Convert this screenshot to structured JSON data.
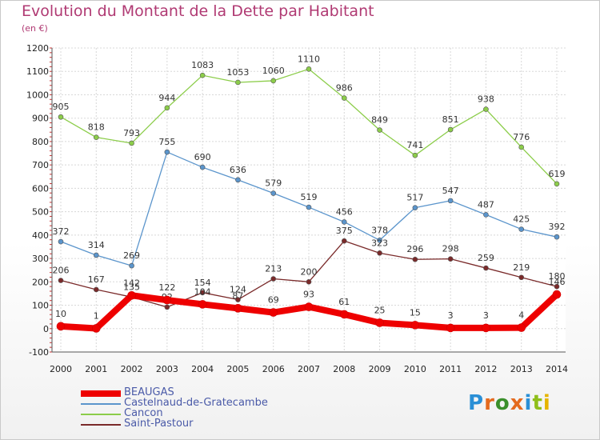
{
  "title": "Evolution du Montant de la Dette par Habitant",
  "subtitle": "(en €)",
  "logo": {
    "text": "Proxiti",
    "colors": [
      "#2a8fd6",
      "#e46a1e",
      "#3a8f2b",
      "#e46a1e",
      "#2a8fd6",
      "#8fbf1a",
      "#e6b400"
    ]
  },
  "chart_data": {
    "type": "line",
    "categories": [
      "2000",
      "2001",
      "2002",
      "2003",
      "2004",
      "2005",
      "2006",
      "2007",
      "2008",
      "2009",
      "2010",
      "2011",
      "2012",
      "2013",
      "2014"
    ],
    "ylim": [
      -100,
      1200
    ],
    "yticks": [
      "-100",
      "0",
      "100",
      "200",
      "300",
      "400",
      "500",
      "600",
      "700",
      "800",
      "900",
      "1000",
      "1100",
      "1200"
    ],
    "grid": true,
    "legend_position": "bottom-left",
    "series": [
      {
        "name": "Cancon",
        "color": "#8ccd4a",
        "values": [
          905,
          818,
          793,
          944,
          1083,
          1053,
          1060,
          1110,
          986,
          849,
          741,
          851,
          938,
          776,
          619
        ],
        "labels": [
          "905",
          "818",
          "793",
          "944",
          "1083",
          "1053",
          "1060",
          "1110",
          "986",
          "849",
          "741",
          "851",
          "938",
          "776",
          "619"
        ]
      },
      {
        "name": "Castelnaud-de-Gratecambe",
        "color": "#5b95cc",
        "values": [
          372,
          314,
          269,
          755,
          690,
          636,
          579,
          519,
          456,
          378,
          517,
          547,
          487,
          425,
          392
        ],
        "labels": [
          "372",
          "314",
          "269",
          "755",
          "690",
          "636",
          "579",
          "519",
          "456",
          "378",
          "517",
          "547",
          "487",
          "425",
          "392"
        ]
      },
      {
        "name": "Saint-Pastour",
        "color": "#7a2a2a",
        "values": [
          206,
          167,
          135,
          92,
          154,
          124,
          213,
          200,
          375,
          323,
          296,
          298,
          259,
          219,
          180
        ],
        "labels": [
          "206",
          "167",
          "135",
          "92",
          "154",
          "124",
          "213",
          "200",
          "375",
          "323",
          "296",
          "298",
          "259",
          "219",
          "180"
        ]
      },
      {
        "name": "BEAUGAS",
        "color": "#ee0000",
        "values": [
          10,
          1,
          142,
          122,
          104,
          87,
          69,
          93,
          61,
          25,
          15,
          3,
          3,
          4,
          146
        ],
        "labels": [
          "10",
          "1",
          "142",
          "122",
          "104",
          "87",
          "69",
          "93",
          "61",
          "25",
          "15",
          "3",
          "3",
          "4",
          "146"
        ]
      }
    ],
    "legend_order": [
      "BEAUGAS",
      "Castelnaud-de-Gratecambe",
      "Cancon",
      "Saint-Pastour"
    ]
  }
}
